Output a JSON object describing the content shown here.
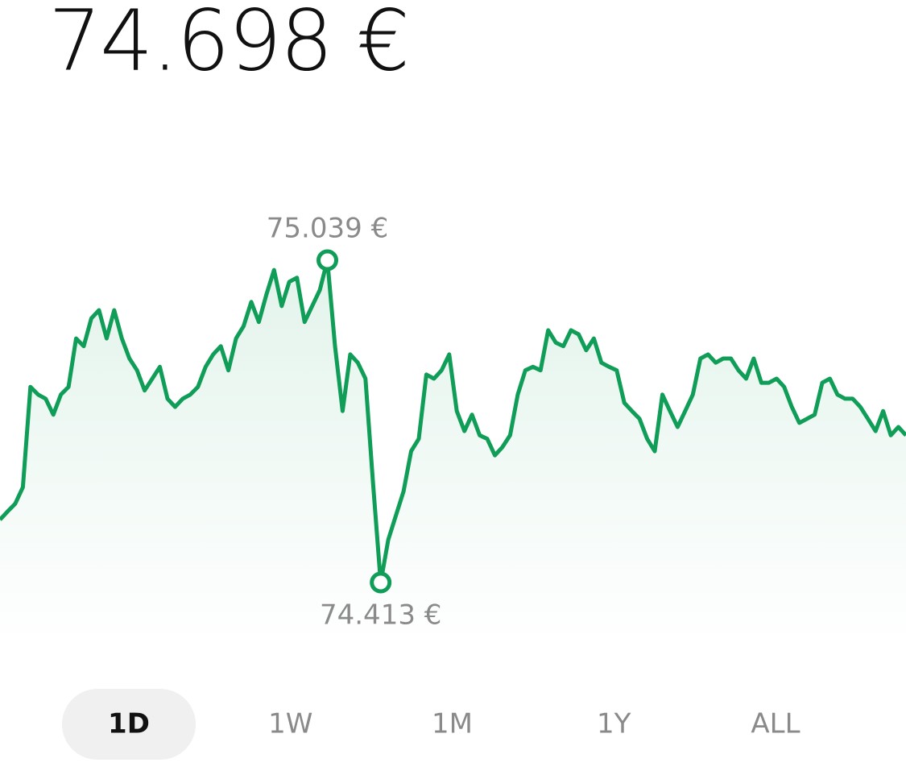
{
  "header": {
    "price": "74.698 €"
  },
  "chart_data": {
    "type": "line",
    "color": "#0f9d58",
    "values": [
      74535,
      74551,
      74566,
      74598,
      74793,
      74778,
      74770,
      74739,
      74778,
      74793,
      74887,
      74872,
      74926,
      74942,
      74887,
      74942,
      74887,
      74848,
      74825,
      74786,
      74809,
      74832,
      74770,
      74754,
      74770,
      74778,
      74793,
      74832,
      74856,
      74872,
      74825,
      74887,
      74911,
      74958,
      74919,
      74973,
      75020,
      74950,
      74997,
      75005,
      74919,
      74950,
      74981,
      75039,
      74872,
      74746,
      74856,
      74840,
      74809,
      74606,
      74413,
      74496,
      74543,
      74590,
      74668,
      74692,
      74817,
      74809,
      74825,
      74856,
      74746,
      74707,
      74739,
      74699,
      74692,
      74660,
      74676,
      74699,
      74778,
      74825,
      74832,
      74825,
      74903,
      74879,
      74872,
      74903,
      74895,
      74864,
      74887,
      74840,
      74832,
      74825,
      74762,
      74746,
      74731,
      74692,
      74668,
      74778,
      74746,
      74715,
      74746,
      74778,
      74848,
      74856,
      74840,
      74848,
      74848,
      74825,
      74809,
      74848,
      74801,
      74801,
      74809,
      74793,
      74754,
      74723,
      74731,
      74739,
      74801,
      74809,
      74778,
      74770,
      74770,
      74754,
      74731,
      74707,
      74746,
      74699,
      74715,
      74699
    ],
    "annotations": [
      {
        "text": "75.039 €",
        "value": 75039
      },
      {
        "text": "74.413 €",
        "value": 74413
      }
    ]
  },
  "tabs": {
    "items": [
      "1D",
      "1W",
      "1M",
      "1Y",
      "ALL"
    ],
    "selected": 0
  }
}
